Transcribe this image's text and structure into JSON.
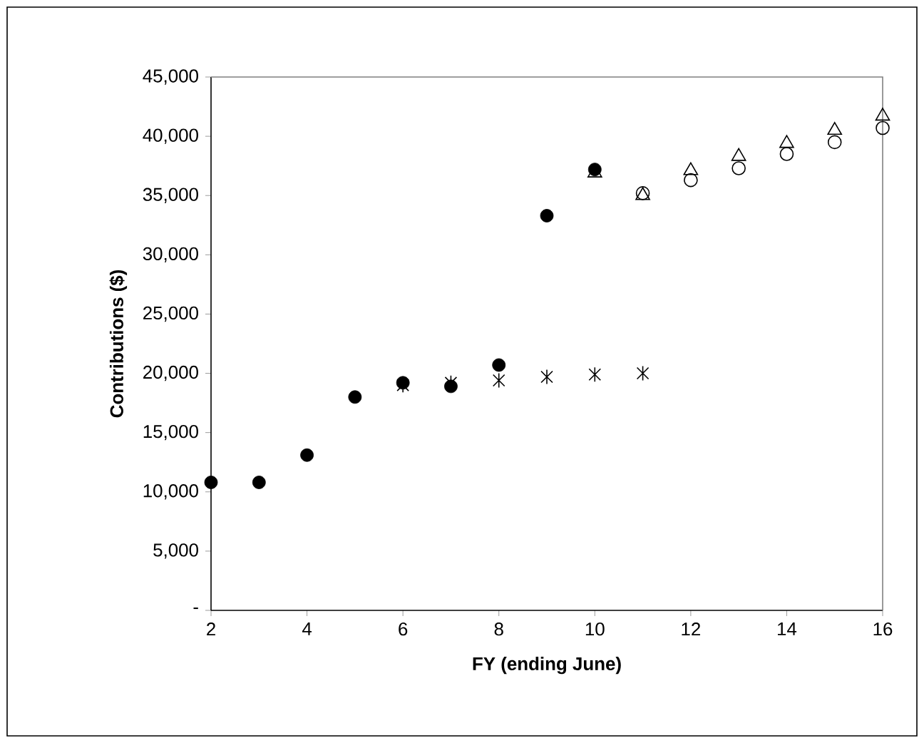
{
  "chart_data": {
    "type": "scatter",
    "xlabel": "FY (ending June)",
    "ylabel": "Contributions ($)",
    "xlim": [
      2,
      16
    ],
    "xticks": [
      2,
      4,
      6,
      8,
      10,
      12,
      14,
      16
    ],
    "ylim": [
      0,
      45000
    ],
    "yticks": [
      {
        "value": 0,
        "label": "-"
      },
      {
        "value": 5000,
        "label": "5,000"
      },
      {
        "value": 10000,
        "label": "10,000"
      },
      {
        "value": 15000,
        "label": "15,000"
      },
      {
        "value": 20000,
        "label": "20,000"
      },
      {
        "value": 25000,
        "label": "25,000"
      },
      {
        "value": 30000,
        "label": "30,000"
      },
      {
        "value": 35000,
        "label": "35,000"
      },
      {
        "value": 40000,
        "label": "40,000"
      },
      {
        "value": 45000,
        "label": "45,000"
      }
    ],
    "series": [
      {
        "color": "#000000",
        "marker": "circle",
        "x": [
          2,
          3,
          4,
          5,
          6,
          7,
          8,
          9,
          10
        ],
        "values": [
          10800,
          10800,
          13100,
          18000,
          19200,
          18900,
          20700,
          33300,
          37200
        ]
      },
      {
        "color": "#000000",
        "marker": "cross",
        "x": [
          6,
          7,
          8,
          9,
          10,
          11
        ],
        "values": [
          19000,
          19200,
          19400,
          19700,
          19900,
          20000
        ]
      },
      {
        "color": "#000000",
        "marker": "triangle-open",
        "x": [
          10,
          11,
          12,
          13,
          14,
          15,
          16
        ],
        "values": [
          36900,
          35000,
          37100,
          38300,
          39400,
          40500,
          41700
        ]
      },
      {
        "color": "#000000",
        "marker": "circle-open",
        "x": [
          11,
          12,
          13,
          14,
          15,
          16
        ],
        "values": [
          35200,
          36300,
          37300,
          38500,
          39500,
          40700
        ]
      }
    ]
  }
}
